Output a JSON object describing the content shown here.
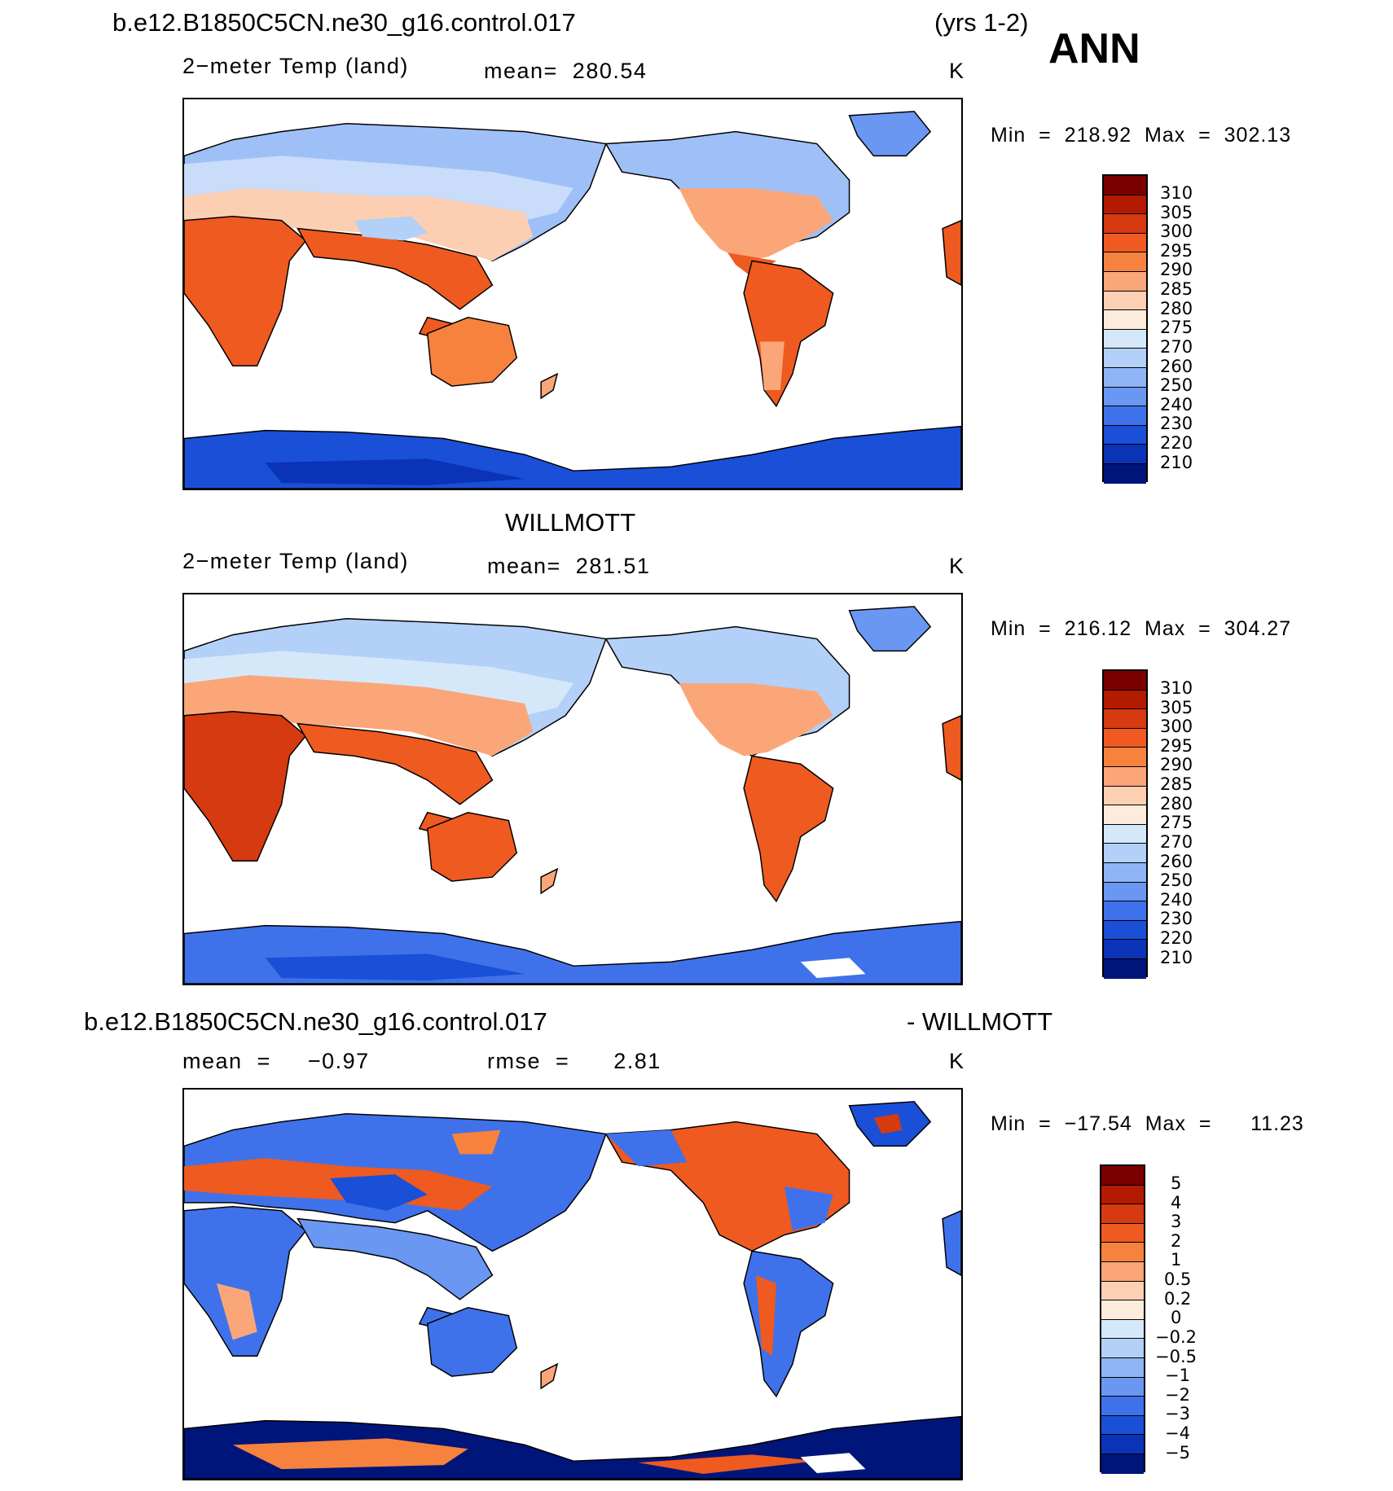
{
  "header": {
    "case_name": "b.e12.B1850C5CN.ne30_g16.control.017",
    "years": "(yrs 1-2)",
    "season": "ANN"
  },
  "panels": [
    {
      "id": "model",
      "title": "",
      "left_label": "2−meter Temp (land)",
      "center_label": "mean=  280.54",
      "units": "K",
      "minmax": "Min  =  218.92  Max  =  302.13",
      "colorbar_labels": [
        "310",
        "305",
        "300",
        "295",
        "290",
        "285",
        "280",
        "275",
        "270",
        "260",
        "250",
        "240",
        "230",
        "220",
        "210"
      ]
    },
    {
      "id": "obs",
      "title": "WILLMOTT",
      "left_label": "2−meter Temp (land)",
      "center_label": "mean=  281.51",
      "units": "K",
      "minmax": "Min  =  216.12  Max  =  304.27",
      "colorbar_labels": [
        "310",
        "305",
        "300",
        "295",
        "290",
        "285",
        "280",
        "275",
        "270",
        "260",
        "250",
        "240",
        "230",
        "220",
        "210"
      ]
    },
    {
      "id": "diff",
      "title_left": "b.e12.B1850C5CN.ne30_g16.control.017",
      "title_right": "- WILLMOTT",
      "left_label": "mean  =     −0.97",
      "center_label": "rmse  =      2.81",
      "units": "K",
      "minmax": "Min  =  −17.54  Max  =      11.23",
      "colorbar_labels": [
        "5",
        "4",
        "3",
        "2",
        "1",
        "0.5",
        "0.2",
        "0",
        "−0.2",
        "−0.5",
        "−1",
        "−2",
        "−3",
        "−4",
        "−5"
      ]
    }
  ],
  "colors": {
    "levels_top_to_bottom": [
      "#7a0000",
      "#b31b00",
      "#d63a10",
      "#ee5a20",
      "#f7823d",
      "#fba678",
      "#fdd0b4",
      "#fdecdc",
      "#d5e8fa",
      "#b2d0f8",
      "#8fb5f6",
      "#6a97f2",
      "#3f72ea",
      "#1a4fd8",
      "#0a33b8",
      "#00157a"
    ]
  }
}
